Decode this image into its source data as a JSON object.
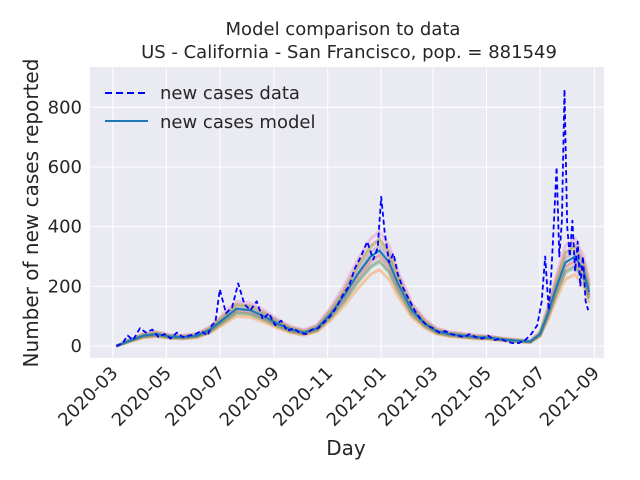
{
  "chart_data": {
    "type": "line",
    "title": "Model comparison to data",
    "subtitle": "US - California - San Francisco, pop. = 881549",
    "xlabel": "Day",
    "ylabel": "Number of new cases reported",
    "x_range": [
      "2020-02-04",
      "2021-09-12"
    ],
    "ylim": [
      -40,
      935
    ],
    "yticks": [
      0,
      200,
      400,
      600,
      800
    ],
    "xticks": [
      "2020-03",
      "2020-05",
      "2020-07",
      "2020-09",
      "2020-11",
      "2021-01",
      "2021-03",
      "2021-05",
      "2021-07",
      "2021-09"
    ],
    "grid": true,
    "legend_position": "top-left",
    "legend": [
      "new cases data",
      "new cases model"
    ],
    "colors": {
      "background": "#eaeaf2",
      "grid": "#ffffff",
      "data": "#0000ff",
      "model": "#1f77b4",
      "ensemble": [
        "#ff7f0e",
        "#2ca02c",
        "#d62728",
        "#9467bd",
        "#8c564b",
        "#e377c2",
        "#7f7f7f",
        "#bcbd22",
        "#17becf"
      ]
    },
    "series": [
      {
        "name": "new cases data",
        "style": "dashed",
        "x": [
          "2020-03-05",
          "2020-03-12",
          "2020-03-18",
          "2020-03-24",
          "2020-04-01",
          "2020-04-08",
          "2020-04-15",
          "2020-04-22",
          "2020-04-29",
          "2020-05-06",
          "2020-05-13",
          "2020-05-20",
          "2020-05-27",
          "2020-06-03",
          "2020-06-10",
          "2020-06-17",
          "2020-06-22",
          "2020-06-26",
          "2020-07-01",
          "2020-07-08",
          "2020-07-15",
          "2020-07-22",
          "2020-07-29",
          "2020-08-05",
          "2020-08-12",
          "2020-08-19",
          "2020-08-26",
          "2020-09-02",
          "2020-09-09",
          "2020-09-16",
          "2020-09-23",
          "2020-09-30",
          "2020-10-07",
          "2020-10-14",
          "2020-10-21",
          "2020-10-28",
          "2020-11-04",
          "2020-11-11",
          "2020-11-18",
          "2020-11-25",
          "2020-12-02",
          "2020-12-09",
          "2020-12-16",
          "2020-12-23",
          "2020-12-28",
          "2021-01-01",
          "2021-01-05",
          "2021-01-10",
          "2021-01-15",
          "2021-01-20",
          "2021-01-25",
          "2021-02-01",
          "2021-02-08",
          "2021-02-15",
          "2021-02-22",
          "2021-03-01",
          "2021-03-08",
          "2021-03-15",
          "2021-03-22",
          "2021-03-29",
          "2021-04-05",
          "2021-04-12",
          "2021-04-19",
          "2021-04-26",
          "2021-05-03",
          "2021-05-10",
          "2021-05-17",
          "2021-05-24",
          "2021-05-31",
          "2021-06-07",
          "2021-06-14",
          "2021-06-21",
          "2021-06-28",
          "2021-07-03",
          "2021-07-07",
          "2021-07-11",
          "2021-07-14",
          "2021-07-17",
          "2021-07-20",
          "2021-07-23",
          "2021-07-26",
          "2021-07-29",
          "2021-08-01",
          "2021-08-04",
          "2021-08-07",
          "2021-08-10",
          "2021-08-13",
          "2021-08-16",
          "2021-08-19",
          "2021-08-22",
          "2021-08-25"
        ],
        "y": [
          0,
          10,
          35,
          20,
          60,
          45,
          55,
          30,
          40,
          25,
          45,
          30,
          35,
          40,
          50,
          35,
          70,
          80,
          190,
          110,
          130,
          210,
          140,
          120,
          150,
          90,
          110,
          70,
          85,
          50,
          60,
          45,
          40,
          55,
          60,
          80,
          100,
          130,
          170,
          200,
          260,
          300,
          350,
          290,
          330,
          500,
          380,
          280,
          310,
          240,
          200,
          160,
          120,
          90,
          70,
          60,
          45,
          50,
          40,
          35,
          30,
          40,
          30,
          25,
          35,
          20,
          25,
          15,
          10,
          10,
          20,
          40,
          70,
          150,
          300,
          120,
          250,
          420,
          600,
          300,
          420,
          860,
          400,
          300,
          420,
          250,
          350,
          200,
          300,
          150,
          120
        ]
      },
      {
        "name": "new cases model",
        "style": "solid",
        "x": [
          "2020-03-05",
          "2020-03-20",
          "2020-04-05",
          "2020-04-20",
          "2020-05-05",
          "2020-05-20",
          "2020-06-05",
          "2020-06-20",
          "2020-07-05",
          "2020-07-20",
          "2020-08-05",
          "2020-08-20",
          "2020-09-05",
          "2020-09-20",
          "2020-10-05",
          "2020-10-20",
          "2020-11-05",
          "2020-11-20",
          "2020-12-05",
          "2020-12-20",
          "2020-12-30",
          "2021-01-10",
          "2021-01-20",
          "2021-02-05",
          "2021-02-20",
          "2021-03-05",
          "2021-03-20",
          "2021-04-05",
          "2021-04-20",
          "2021-05-05",
          "2021-05-20",
          "2021-06-05",
          "2021-06-20",
          "2021-07-01",
          "2021-07-10",
          "2021-07-20",
          "2021-07-30",
          "2021-08-10",
          "2021-08-20",
          "2021-08-26"
        ],
        "y": [
          0,
          18,
          35,
          40,
          32,
          30,
          35,
          55,
          90,
          125,
          120,
          100,
          75,
          55,
          45,
          60,
          110,
          170,
          240,
          300,
          320,
          280,
          210,
          120,
          75,
          50,
          40,
          35,
          30,
          28,
          22,
          18,
          15,
          40,
          110,
          200,
          280,
          300,
          250,
          180
        ]
      }
    ]
  }
}
